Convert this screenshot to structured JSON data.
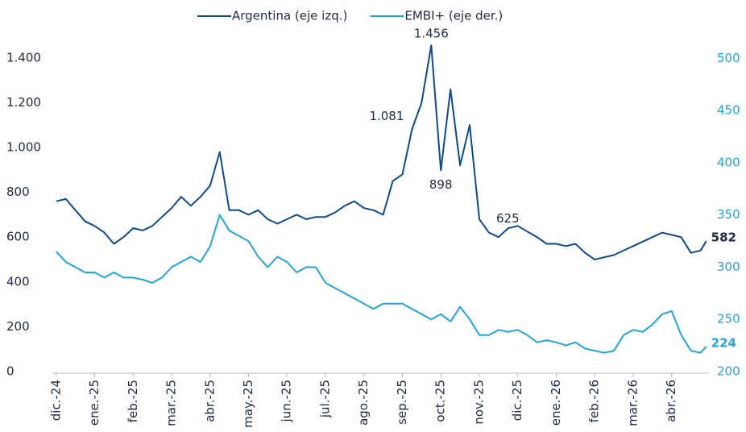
{
  "chart_data": {
    "type": "line",
    "x": [
      0,
      0.25,
      0.5,
      0.75,
      1,
      1.25,
      1.5,
      1.75,
      2,
      2.25,
      2.5,
      2.75,
      3,
      3.25,
      3.5,
      3.75,
      4,
      4.25,
      4.5,
      4.75,
      5,
      5.25,
      5.5,
      5.75,
      6,
      6.25,
      6.5,
      6.75,
      7,
      7.25,
      7.5,
      7.75,
      8,
      8.25,
      8.5,
      8.75,
      9,
      9.25,
      9.5,
      9.75,
      10,
      10.25,
      10.5,
      10.75,
      11,
      11.25,
      11.5,
      11.75,
      12,
      12.25,
      12.5,
      12.75,
      13,
      13.25,
      13.5,
      13.75,
      14,
      14.25,
      14.5,
      14.75,
      15,
      15.25,
      15.5,
      15.75,
      16,
      16.25,
      16.5,
      16.75,
      16.9
    ],
    "xlim": [
      -0.1,
      16.97
    ],
    "xticks": [
      {
        "value": 0,
        "label": "dic.-24"
      },
      {
        "value": 1,
        "label": "ene.-25"
      },
      {
        "value": 2,
        "label": "feb.-25"
      },
      {
        "value": 3,
        "label": "mar.-25"
      },
      {
        "value": 4,
        "label": "abr.-25"
      },
      {
        "value": 5,
        "label": "may.-25"
      },
      {
        "value": 6,
        "label": "jun.-25"
      },
      {
        "value": 7,
        "label": "jul.-25"
      },
      {
        "value": 8,
        "label": "ago.-25"
      },
      {
        "value": 9,
        "label": "sep.-25"
      },
      {
        "value": 10,
        "label": "oct.-25"
      },
      {
        "value": 11,
        "label": "nov.-25"
      },
      {
        "value": 12,
        "label": "dic.-25"
      },
      {
        "value": 13,
        "label": "ene.-26"
      },
      {
        "value": 14,
        "label": "feb.-26"
      },
      {
        "value": 15,
        "label": "mar.-26"
      },
      {
        "value": 16,
        "label": "abr.-26"
      }
    ],
    "ylim": [
      0,
      1500
    ],
    "yticks": [
      0,
      200,
      400,
      600,
      800,
      {
        "value": 1000,
        "label": "1.000"
      },
      {
        "value": 1200,
        "label": "1.200"
      },
      {
        "value": 1400,
        "label": "1.400"
      }
    ],
    "y2lim": [
      200,
      522
    ],
    "y2ticks": [
      200,
      250,
      300,
      350,
      400,
      450,
      500
    ],
    "series": [
      {
        "name": "Argentina (eje izq.)",
        "color": "#0d4a92",
        "values": [
          760,
          770,
          720,
          670,
          650,
          620,
          570,
          600,
          640,
          630,
          650,
          690,
          730,
          780,
          740,
          780,
          830,
          980,
          720,
          720,
          700,
          720,
          680,
          660,
          680,
          700,
          680,
          690,
          690,
          710,
          740,
          760,
          730,
          720,
          700,
          850,
          880,
          1081,
          1200,
          1456,
          898,
          1260,
          920,
          1100,
          680,
          620,
          600,
          640,
          650,
          625,
          600,
          570,
          570,
          560,
          570,
          530,
          500,
          510,
          520,
          540,
          560,
          580,
          600,
          620,
          610,
          600,
          530,
          540,
          582
        ],
        "value_labels": [
          null,
          null,
          null,
          null,
          null,
          null,
          null,
          null,
          null,
          null,
          null,
          null,
          null,
          null,
          null,
          null,
          null,
          null,
          null,
          null,
          null,
          null,
          null,
          null,
          null,
          null,
          null,
          null,
          null,
          null,
          null,
          null,
          null,
          null,
          null,
          null,
          null,
          "1.081",
          null,
          "1.456",
          "898",
          null,
          null,
          null,
          null,
          null,
          null,
          null,
          null,
          "625",
          null,
          null,
          null,
          null,
          null,
          null,
          null,
          null,
          null,
          null,
          null,
          null,
          null,
          null,
          null,
          null,
          null,
          null,
          "582"
        ]
      },
      {
        "name": "EMBI+ (eje der.)",
        "color": "#1ea6e0",
        "axis": "y2",
        "values": [
          315,
          305,
          300,
          295,
          295,
          290,
          295,
          290,
          290,
          288,
          285,
          290,
          300,
          305,
          310,
          305,
          320,
          350,
          335,
          330,
          325,
          310,
          300,
          310,
          305,
          295,
          300,
          300,
          285,
          280,
          275,
          270,
          265,
          260,
          265,
          265,
          265,
          260,
          255,
          250,
          255,
          248,
          262,
          250,
          235,
          235,
          240,
          238,
          240,
          235,
          228,
          230,
          228,
          225,
          228,
          222,
          220,
          218,
          220,
          235,
          240,
          238,
          245,
          255,
          258,
          235,
          220,
          218,
          224
        ],
        "value_labels": [
          null,
          null,
          null,
          null,
          null,
          null,
          null,
          null,
          null,
          null,
          null,
          null,
          null,
          null,
          null,
          null,
          null,
          null,
          null,
          null,
          null,
          null,
          null,
          null,
          null,
          null,
          null,
          null,
          null,
          null,
          null,
          null,
          null,
          null,
          null,
          null,
          null,
          null,
          null,
          null,
          null,
          null,
          null,
          null,
          null,
          null,
          null,
          null,
          null,
          null,
          null,
          null,
          null,
          null,
          null,
          null,
          null,
          null,
          null,
          null,
          null,
          null,
          null,
          null,
          null,
          null,
          null,
          null,
          "224"
        ]
      }
    ]
  }
}
